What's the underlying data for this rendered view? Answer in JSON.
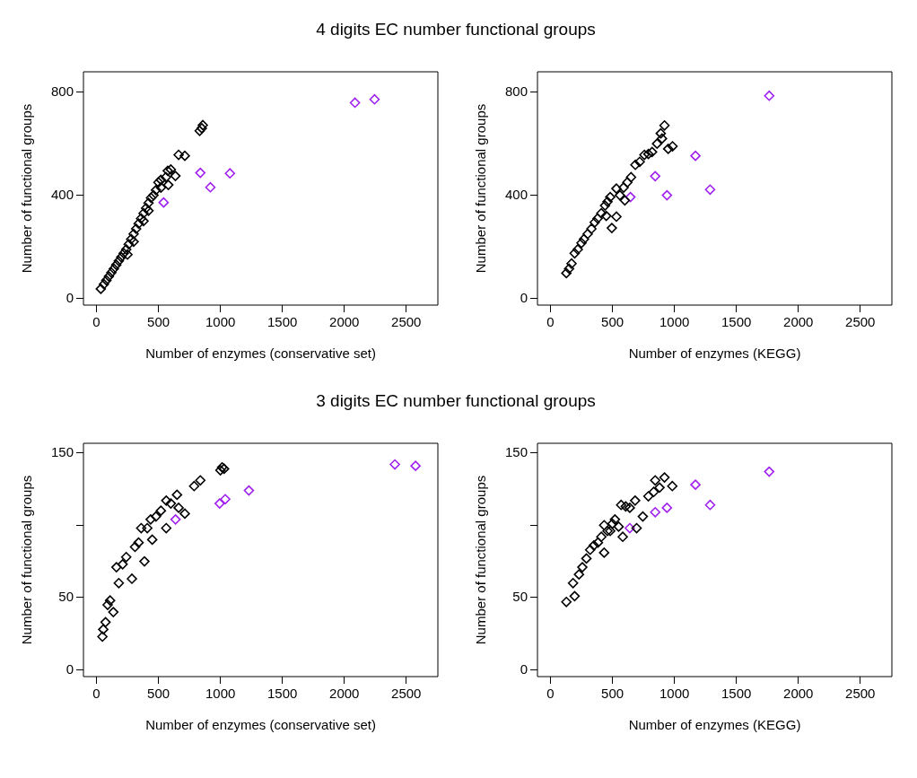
{
  "chart_data": [
    {
      "type": "scatter",
      "title": "4 digits EC number functional groups",
      "xlabel": "Number of enzymes (conservative set)",
      "ylabel": "Number of functional groups",
      "marker": "diamond",
      "grid": false,
      "xlim": [
        -105,
        2755
      ],
      "xticks": [
        0,
        500,
        1000,
        1500,
        2000,
        2500
      ],
      "ylim": [
        -26,
        879
      ],
      "yticks": [
        0,
        400,
        800
      ],
      "series": [
        {
          "color": "#000000",
          "x": [
            35,
            60,
            80,
            100,
            120,
            140,
            160,
            180,
            200,
            220,
            240,
            260,
            280,
            300,
            320,
            340,
            360,
            380,
            400,
            420,
            440,
            420,
            380,
            300,
            250,
            460,
            480,
            500,
            520,
            560,
            575,
            600,
            637,
            663,
            713,
            833,
            858,
            850,
            580,
            520
          ],
          "values": [
            37,
            55,
            70,
            85,
            100,
            115,
            130,
            145,
            160,
            175,
            190,
            210,
            230,
            250,
            270,
            290,
            310,
            330,
            350,
            370,
            390,
            340,
            300,
            220,
            170,
            400,
            420,
            450,
            430,
            470,
            495,
            500,
            475,
            557,
            553,
            650,
            672,
            660,
            440,
            460
          ]
        },
        {
          "color": "#a020f0",
          "x": [
            542,
            838,
            919,
            1077,
            2086,
            2244
          ],
          "values": [
            372,
            487,
            431,
            485,
            759,
            772
          ]
        }
      ]
    },
    {
      "type": "scatter",
      "xlabel": "Number of enzymes (KEGG)",
      "ylabel": "Number of functional groups",
      "marker": "diamond",
      "grid": false,
      "xlim": [
        -105,
        2755
      ],
      "xticks": [
        0,
        500,
        1000,
        1500,
        2000,
        2500
      ],
      "ylim": [
        -26,
        879
      ],
      "yticks": [
        0,
        400,
        800
      ],
      "series": [
        {
          "color": "#000000",
          "x": [
            128,
            150,
            170,
            195,
            220,
            250,
            270,
            300,
            330,
            357,
            380,
            410,
            440,
            460,
            482,
            495,
            532,
            532,
            560,
            590,
            620,
            650,
            685,
            720,
            758,
            790,
            820,
            860,
            890,
            920,
            900,
            985,
            950,
            600,
            450
          ],
          "values": [
            98,
            115,
            135,
            175,
            190,
            215,
            230,
            250,
            270,
            295,
            310,
            330,
            360,
            375,
            393,
            273,
            426,
            317,
            400,
            430,
            450,
            470,
            518,
            530,
            557,
            560,
            568,
            600,
            640,
            671,
            620,
            590,
            580,
            380,
            320
          ]
        },
        {
          "color": "#a020f0",
          "x": [
            645,
            845,
            940,
            1170,
            1288,
            1765
          ],
          "values": [
            393,
            474,
            400,
            553,
            422,
            786
          ]
        }
      ]
    },
    {
      "type": "scatter",
      "title": "3 digits EC number functional groups",
      "xlabel": "Number of enzymes (conservative set)",
      "ylabel": "Number of functional groups",
      "marker": "diamond",
      "grid": false,
      "xlim": [
        -105,
        2755
      ],
      "xticks": [
        0,
        500,
        1000,
        1500,
        2000,
        2500
      ],
      "ylim": [
        -4.6,
        156.6
      ],
      "yticks": [
        0,
        50,
        {
          "value": 100,
          "label": null
        },
        150
      ],
      "series": [
        {
          "color": "#000000",
          "x": [
            48,
            55,
            73,
            90,
            110,
            136,
            161,
            180,
            211,
            240,
            286,
            311,
            340,
            361,
            387,
            410,
            437,
            450,
            480,
            520,
            563,
            563,
            600,
            650,
            663,
            713,
            788,
            838,
            1000,
            1014,
            1030
          ],
          "values": [
            23,
            28,
            33,
            45,
            48,
            40,
            71,
            60,
            73,
            78,
            63,
            85,
            88,
            98,
            75,
            98,
            104,
            90,
            106,
            110,
            117,
            98,
            115,
            121,
            112,
            108,
            127,
            131,
            138,
            140,
            139
          ]
        },
        {
          "color": "#a020f0",
          "x": [
            638,
            994,
            1039,
            1230,
            2408,
            2575
          ],
          "values": [
            104,
            115,
            118,
            124,
            142,
            141
          ]
        }
      ]
    },
    {
      "type": "scatter",
      "xlabel": "Number of enzymes (KEGG)",
      "ylabel": "Number of functional groups",
      "marker": "diamond",
      "grid": false,
      "xlim": [
        -105,
        2755
      ],
      "xticks": [
        0,
        500,
        1000,
        1500,
        2000,
        2500
      ],
      "ylim": [
        -4.6,
        156.6
      ],
      "yticks": [
        0,
        50,
        {
          "value": 100,
          "label": null
        },
        150
      ],
      "series": [
        {
          "color": "#000000",
          "x": [
            128,
            182,
            195,
            230,
            257,
            290,
            320,
            350,
            383,
            410,
            433,
            433,
            460,
            482,
            500,
            520,
            550,
            570,
            583,
            607,
            640,
            683,
            695,
            745,
            790,
            833,
            845,
            880,
            920,
            983
          ],
          "values": [
            47,
            60,
            51,
            66,
            71,
            77,
            83,
            86,
            88,
            92,
            81,
            100,
            96,
            96,
            101,
            104,
            99,
            114,
            92,
            113,
            112,
            117,
            98,
            106,
            120,
            123,
            131,
            126,
            133,
            127
          ]
        },
        {
          "color": "#a020f0",
          "x": [
            640,
            845,
            940,
            1170,
            1288,
            1765
          ],
          "values": [
            98,
            109,
            112,
            128,
            114,
            137
          ]
        }
      ]
    }
  ]
}
